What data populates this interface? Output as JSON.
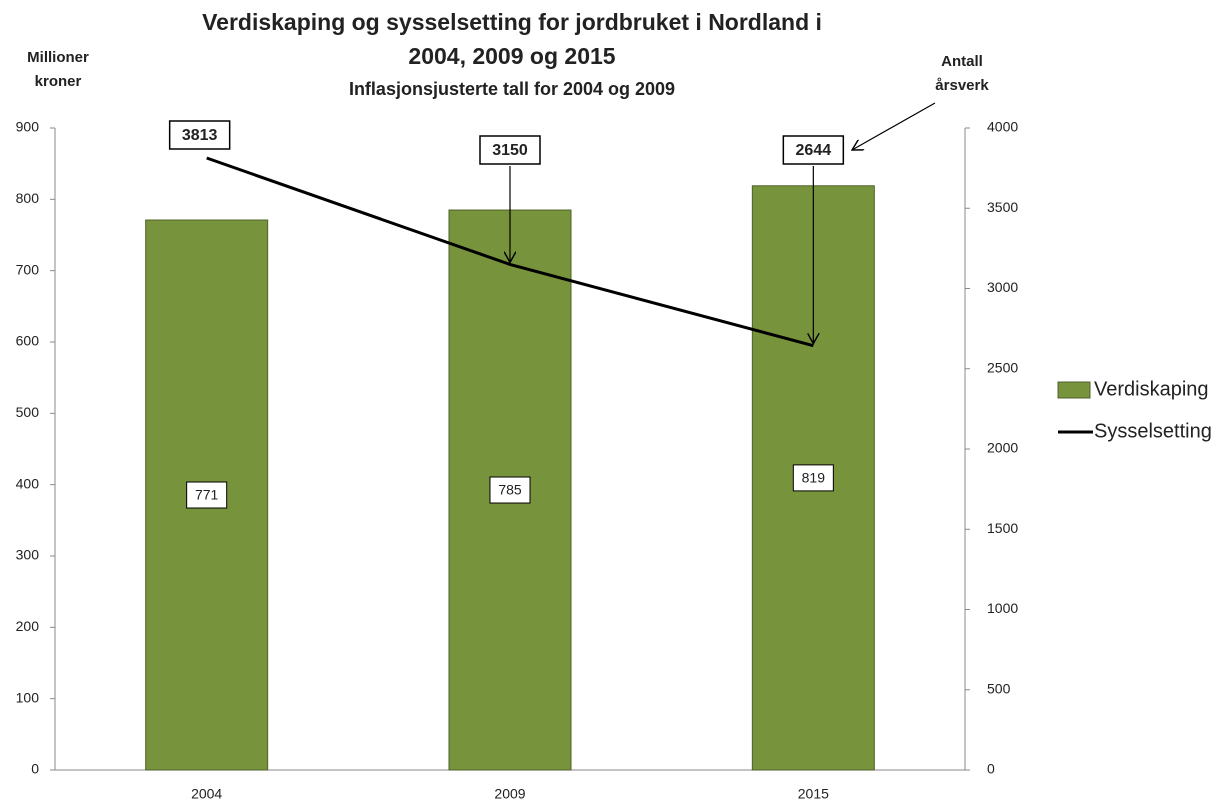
{
  "chart_data": {
    "type": "bar",
    "title": [
      "Verdiskaping og sysselsetting for jordbruket i Nordland i",
      "2004, 2009 og 2015"
    ],
    "subtitle": "Inflasjonsjusterte tall for 2004 og 2009",
    "ylabel": [
      "Millioner",
      "kroner"
    ],
    "y2label": [
      "Antall",
      "årsverk"
    ],
    "categories": [
      "2004",
      "2009",
      "2015"
    ],
    "series": [
      {
        "name": "Verdiskaping",
        "type": "bar",
        "color": "#77933c",
        "values": [
          771,
          785,
          819
        ]
      },
      {
        "name": "Sysselsetting",
        "type": "line",
        "axis": "y2",
        "color": "#000000",
        "values": [
          3813,
          3150,
          2644
        ]
      }
    ],
    "ylim": [
      0,
      900
    ],
    "yticks": [
      0,
      100,
      200,
      300,
      400,
      500,
      600,
      700,
      800,
      900
    ],
    "y2lim": [
      0,
      4000
    ],
    "y2ticks": [
      0,
      500,
      1000,
      1500,
      2000,
      2500,
      3000,
      3500,
      4000
    ],
    "legend": "right"
  }
}
